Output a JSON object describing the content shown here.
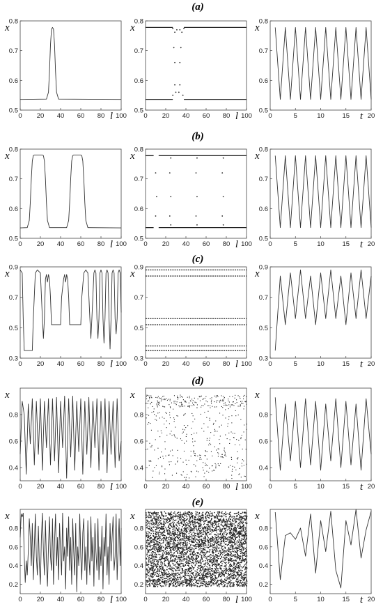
{
  "figure": {
    "row_labels": [
      "(a)",
      "(b)",
      "(c)",
      "(d)",
      "(e)"
    ]
  },
  "chart_data": [
    {
      "type": "line",
      "row": "(a)",
      "col": "profile",
      "xlabel": "l",
      "ylabel": "x",
      "xlim": [
        0,
        100
      ],
      "ylim": [
        0.5,
        0.8
      ],
      "xticks": [
        "0",
        "20",
        "40",
        "60",
        "80",
        "100"
      ],
      "yticks": [
        "0.5",
        "0.6",
        "0.7",
        "0.8"
      ],
      "x": [
        0,
        26,
        28,
        29,
        30,
        31,
        32,
        33,
        34,
        35,
        36,
        38,
        100
      ],
      "y": [
        0.536,
        0.537,
        0.56,
        0.63,
        0.72,
        0.772,
        0.778,
        0.772,
        0.72,
        0.63,
        0.56,
        0.537,
        0.536
      ]
    },
    {
      "type": "scatter",
      "row": "(a)",
      "col": "spatiotemporal",
      "xlabel": "l",
      "ylabel": "x",
      "xlim": [
        0,
        100
      ],
      "ylim": [
        0.5,
        0.8
      ],
      "xticks": [
        "0",
        "20",
        "40",
        "60",
        "80",
        "100"
      ],
      "yticks": [
        "0.5",
        "0.6",
        "0.7",
        "0.8"
      ],
      "bands": [
        {
          "y": 0.778,
          "x0": 0,
          "x1": 100,
          "gap": [
            27,
            38
          ]
        },
        {
          "y": 0.536,
          "x0": 0,
          "x1": 100,
          "gap": [
            27,
            38
          ]
        }
      ],
      "points": [
        [
          27,
          0.775
        ],
        [
          29,
          0.762
        ],
        [
          31,
          0.77
        ],
        [
          34,
          0.77
        ],
        [
          36,
          0.762
        ],
        [
          38,
          0.775
        ],
        [
          28,
          0.71
        ],
        [
          35,
          0.71
        ],
        [
          29,
          0.66
        ],
        [
          34,
          0.66
        ],
        [
          29,
          0.585
        ],
        [
          34,
          0.585
        ],
        [
          27,
          0.55
        ],
        [
          30,
          0.56
        ],
        [
          33,
          0.56
        ],
        [
          37,
          0.55
        ]
      ]
    },
    {
      "type": "line",
      "row": "(a)",
      "col": "time",
      "xlabel": "t",
      "ylabel": "x",
      "xlim": [
        0,
        20
      ],
      "ylim": [
        0.5,
        0.8
      ],
      "xticks": [
        "0",
        "5",
        "10",
        "15",
        "20"
      ],
      "yticks": [
        "0.5",
        "0.6",
        "0.7",
        "0.8"
      ],
      "x": [
        1,
        2,
        3,
        4,
        5,
        6,
        7,
        8,
        9,
        10,
        11,
        12,
        13,
        14,
        15,
        16,
        17,
        18,
        19,
        20
      ],
      "y": [
        0.778,
        0.536,
        0.778,
        0.536,
        0.778,
        0.536,
        0.778,
        0.536,
        0.778,
        0.536,
        0.778,
        0.536,
        0.778,
        0.536,
        0.778,
        0.536,
        0.778,
        0.536,
        0.778,
        0.536
      ]
    },
    {
      "type": "line",
      "row": "(b)",
      "col": "profile",
      "xlabel": "l",
      "ylabel": "x",
      "xlim": [
        0,
        100
      ],
      "ylim": [
        0.5,
        0.8
      ],
      "xticks": [
        "0",
        "20",
        "40",
        "60",
        "80",
        "100"
      ],
      "yticks": [
        "0.5",
        "0.6",
        "0.7",
        "0.8"
      ],
      "x": [
        0,
        7,
        9,
        10,
        11,
        12,
        13,
        14,
        22,
        23,
        24,
        25,
        26,
        27,
        29,
        46,
        48,
        49,
        50,
        51,
        52,
        53,
        60,
        61,
        62,
        63,
        64,
        65,
        67,
        100
      ],
      "y": [
        0.535,
        0.536,
        0.56,
        0.62,
        0.7,
        0.76,
        0.778,
        0.78,
        0.78,
        0.778,
        0.76,
        0.7,
        0.62,
        0.56,
        0.536,
        0.536,
        0.56,
        0.62,
        0.7,
        0.76,
        0.778,
        0.78,
        0.78,
        0.778,
        0.76,
        0.7,
        0.62,
        0.56,
        0.536,
        0.535
      ]
    },
    {
      "type": "scatter",
      "row": "(b)",
      "col": "spatiotemporal",
      "xlabel": "l",
      "ylabel": "x",
      "xlim": [
        0,
        100
      ],
      "ylim": [
        0.5,
        0.8
      ],
      "xticks": [
        "0",
        "20",
        "40",
        "60",
        "80",
        "100"
      ],
      "yticks": [
        "0.5",
        "0.6",
        "0.7",
        "0.8"
      ],
      "bands": [
        {
          "y": 0.778,
          "x0": 0,
          "x1": 100,
          "gap": [
            8,
            13
          ]
        },
        {
          "y": 0.536,
          "x0": 0,
          "x1": 100,
          "gap": [
            8,
            13
          ]
        }
      ],
      "points": [
        [
          10,
          0.72
        ],
        [
          24,
          0.72
        ],
        [
          50,
          0.72
        ],
        [
          76,
          0.72
        ],
        [
          11,
          0.64
        ],
        [
          25,
          0.64
        ],
        [
          51,
          0.64
        ],
        [
          77,
          0.64
        ],
        [
          10,
          0.575
        ],
        [
          24,
          0.575
        ],
        [
          50,
          0.575
        ],
        [
          76,
          0.575
        ],
        [
          25,
          0.77
        ],
        [
          51,
          0.77
        ],
        [
          77,
          0.77
        ],
        [
          25,
          0.545
        ],
        [
          51,
          0.545
        ],
        [
          77,
          0.545
        ]
      ]
    },
    {
      "type": "line",
      "row": "(b)",
      "col": "time",
      "xlabel": "t",
      "ylabel": "x",
      "xlim": [
        0,
        20
      ],
      "ylim": [
        0.5,
        0.8
      ],
      "xticks": [
        "0",
        "5",
        "10",
        "15",
        "20"
      ],
      "yticks": [
        "0.5",
        "0.6",
        "0.7",
        "0.8"
      ],
      "x": [
        1,
        2,
        3,
        4,
        5,
        6,
        7,
        8,
        9,
        10,
        11,
        12,
        13,
        14,
        15,
        16,
        17,
        18,
        19,
        20
      ],
      "y": [
        0.778,
        0.536,
        0.778,
        0.536,
        0.778,
        0.536,
        0.778,
        0.536,
        0.778,
        0.536,
        0.778,
        0.536,
        0.778,
        0.536,
        0.778,
        0.536,
        0.778,
        0.536,
        0.778,
        0.536
      ]
    },
    {
      "type": "line",
      "row": "(c)",
      "col": "profile",
      "xlabel": "l",
      "ylabel": "x",
      "xlim": [
        0,
        100
      ],
      "ylim": [
        0.3,
        0.9
      ],
      "xticks": [
        "0",
        "20",
        "40",
        "60",
        "80",
        "100"
      ],
      "yticks": [
        "0.3",
        "0.5",
        "0.7",
        "0.9"
      ],
      "x": [
        0,
        2,
        3,
        4,
        12,
        13,
        15,
        17,
        20,
        22,
        23,
        24,
        25,
        26,
        27,
        28,
        29,
        30,
        31,
        33,
        37,
        38,
        40,
        41,
        43,
        44,
        45,
        46,
        47,
        48,
        49,
        50,
        51,
        52,
        53,
        55,
        56,
        60,
        61,
        63,
        65,
        67,
        69,
        70,
        71,
        73,
        74,
        75,
        76,
        77,
        78,
        79,
        80,
        81,
        82,
        83,
        84,
        85,
        86,
        87,
        88,
        89,
        90,
        91,
        92,
        93,
        94,
        95,
        96,
        97,
        98,
        99,
        100
      ],
      "y": [
        0.88,
        0.86,
        0.56,
        0.35,
        0.35,
        0.56,
        0.86,
        0.88,
        0.86,
        0.56,
        0.43,
        0.56,
        0.82,
        0.85,
        0.8,
        0.85,
        0.82,
        0.7,
        0.52,
        0.52,
        0.52,
        0.52,
        0.52,
        0.7,
        0.82,
        0.85,
        0.8,
        0.85,
        0.82,
        0.7,
        0.52,
        0.52,
        0.52,
        0.52,
        0.52,
        0.52,
        0.52,
        0.52,
        0.7,
        0.86,
        0.88,
        0.86,
        0.56,
        0.43,
        0.56,
        0.86,
        0.88,
        0.86,
        0.56,
        0.43,
        0.56,
        0.86,
        0.88,
        0.86,
        0.56,
        0.4,
        0.56,
        0.86,
        0.88,
        0.86,
        0.56,
        0.36,
        0.56,
        0.86,
        0.88,
        0.86,
        0.56,
        0.46,
        0.56,
        0.86,
        0.88,
        0.86,
        0.6
      ]
    },
    {
      "type": "scatter",
      "row": "(c)",
      "col": "spatiotemporal",
      "xlabel": "l",
      "ylabel": "x",
      "xlim": [
        0,
        100
      ],
      "ylim": [
        0.3,
        0.9
      ],
      "xticks": [
        "0",
        "20",
        "40",
        "60",
        "80",
        "100"
      ],
      "yticks": [
        "0.3",
        "0.5",
        "0.7",
        "0.9"
      ],
      "bands": [
        {
          "y": 0.88,
          "x0": 0,
          "x1": 100,
          "gap": []
        },
        {
          "y": 0.84,
          "x0": 0,
          "x1": 100,
          "gap": []
        },
        {
          "y": 0.56,
          "x0": 0,
          "x1": 100,
          "gap": []
        },
        {
          "y": 0.52,
          "x0": 0,
          "x1": 100,
          "gap": []
        },
        {
          "y": 0.38,
          "x0": 0,
          "x1": 100,
          "gap": []
        },
        {
          "y": 0.35,
          "x0": 0,
          "x1": 100,
          "gap": []
        }
      ],
      "points": []
    },
    {
      "type": "line",
      "row": "(c)",
      "col": "time",
      "xlabel": "t",
      "ylabel": "x",
      "xlim": [
        0,
        20
      ],
      "ylim": [
        0.3,
        0.9
      ],
      "xticks": [
        "0",
        "5",
        "10",
        "15",
        "20"
      ],
      "yticks": [
        "0.3",
        "0.5",
        "0.7",
        "0.9"
      ],
      "x": [
        1,
        2,
        3,
        4,
        5,
        6,
        7,
        8,
        9,
        10,
        11,
        12,
        13,
        14,
        15,
        16,
        17,
        18,
        19,
        20
      ],
      "y": [
        0.35,
        0.84,
        0.52,
        0.86,
        0.56,
        0.88,
        0.56,
        0.84,
        0.52,
        0.86,
        0.56,
        0.88,
        0.56,
        0.84,
        0.52,
        0.86,
        0.56,
        0.88,
        0.56,
        0.84
      ]
    },
    {
      "type": "line",
      "row": "(d)",
      "col": "profile",
      "xlabel": "l",
      "ylabel": "x",
      "xlim": [
        0,
        100
      ],
      "ylim": [
        0.3,
        1.0
      ],
      "xticks": [
        "0",
        "20",
        "40",
        "60",
        "80",
        "100"
      ],
      "yticks": [
        "0.4",
        "0.6",
        "0.8"
      ],
      "x": [
        0,
        2,
        4,
        6,
        8,
        10,
        12,
        14,
        16,
        18,
        20,
        22,
        24,
        26,
        28,
        30,
        32,
        34,
        36,
        38,
        40,
        42,
        44,
        46,
        48,
        50,
        52,
        54,
        56,
        58,
        60,
        62,
        64,
        66,
        68,
        70,
        72,
        74,
        76,
        78,
        80,
        82,
        84,
        86,
        88,
        90,
        92,
        94,
        96,
        98,
        100
      ],
      "y": [
        0.5,
        0.9,
        0.8,
        0.35,
        0.88,
        0.58,
        0.92,
        0.42,
        0.9,
        0.5,
        0.92,
        0.38,
        0.9,
        0.55,
        0.92,
        0.42,
        0.92,
        0.45,
        0.93,
        0.36,
        0.9,
        0.55,
        0.94,
        0.32,
        0.92,
        0.48,
        0.94,
        0.38,
        0.9,
        0.52,
        0.92,
        0.35,
        0.9,
        0.5,
        0.93,
        0.4,
        0.9,
        0.55,
        0.92,
        0.38,
        0.9,
        0.5,
        0.92,
        0.36,
        0.9,
        0.5,
        0.9,
        0.4,
        0.92,
        0.45,
        0.6
      ]
    },
    {
      "type": "scatter",
      "row": "(d)",
      "col": "spatiotemporal",
      "xlabel": "l",
      "ylabel": "x",
      "xlim": [
        0,
        100
      ],
      "ylim": [
        0.3,
        1.0
      ],
      "xticks": [
        "0",
        "20",
        "40",
        "60",
        "80",
        "100"
      ],
      "yticks": [
        "0.4",
        "0.6",
        "0.8"
      ],
      "bands": [],
      "points": [],
      "noise_density": 520,
      "noise_seed": 7
    },
    {
      "type": "line",
      "row": "(d)",
      "col": "time",
      "xlabel": "t",
      "ylabel": "x",
      "xlim": [
        0,
        20
      ],
      "ylim": [
        0.3,
        1.0
      ],
      "xticks": [
        "0",
        "5",
        "10",
        "15",
        "20"
      ],
      "yticks": [
        "0.4",
        "0.6",
        "0.8"
      ],
      "x": [
        1,
        2,
        3,
        4,
        5,
        6,
        7,
        8,
        9,
        10,
        11,
        12,
        13,
        14,
        15,
        16,
        17,
        18,
        19,
        20
      ],
      "y": [
        0.93,
        0.38,
        0.88,
        0.45,
        0.9,
        0.4,
        0.92,
        0.42,
        0.9,
        0.38,
        0.88,
        0.45,
        0.92,
        0.4,
        0.9,
        0.42,
        0.88,
        0.38,
        0.92,
        0.5
      ]
    },
    {
      "type": "line",
      "row": "(e)",
      "col": "profile",
      "xlabel": "l",
      "ylabel": "x",
      "xlim": [
        0,
        100
      ],
      "ylim": [
        0.1,
        1.0
      ],
      "xticks": [
        "0",
        "20",
        "40",
        "60",
        "80",
        "100"
      ],
      "yticks": [
        "0.2",
        "0.4",
        "0.6",
        "0.8"
      ],
      "x": [
        0,
        1,
        2,
        3,
        4,
        5,
        6,
        7,
        8,
        9,
        10,
        11,
        12,
        13,
        14,
        15,
        16,
        17,
        18,
        19,
        20,
        21,
        22,
        23,
        24,
        25,
        26,
        27,
        28,
        29,
        30,
        31,
        32,
        33,
        34,
        35,
        36,
        37,
        38,
        39,
        40,
        41,
        42,
        43,
        44,
        45,
        46,
        47,
        48,
        49,
        50,
        51,
        52,
        53,
        54,
        55,
        56,
        57,
        58,
        59,
        60,
        61,
        62,
        63,
        64,
        65,
        66,
        67,
        68,
        69,
        70,
        71,
        72,
        73,
        74,
        75,
        76,
        77,
        78,
        79,
        80,
        81,
        82,
        83,
        84,
        85,
        86,
        87,
        88,
        89,
        90,
        91,
        92,
        93,
        94,
        95,
        96,
        97,
        98,
        99,
        100
      ],
      "y": [
        0.7,
        0.95,
        0.92,
        0.96,
        0.5,
        0.22,
        0.45,
        0.3,
        0.55,
        0.9,
        0.7,
        0.4,
        0.85,
        0.25,
        0.6,
        0.95,
        0.5,
        0.3,
        0.82,
        0.4,
        0.2,
        0.7,
        0.96,
        0.55,
        0.3,
        0.88,
        0.45,
        0.18,
        0.6,
        0.92,
        0.5,
        0.35,
        0.9,
        0.2,
        0.65,
        0.95,
        0.4,
        0.7,
        0.25,
        0.85,
        0.55,
        0.3,
        0.96,
        0.45,
        0.6,
        0.15,
        0.8,
        0.5,
        0.92,
        0.35,
        0.7,
        0.2,
        0.9,
        0.55,
        0.3,
        0.85,
        0.12,
        0.6,
        0.4,
        0.95,
        0.5,
        0.25,
        0.75,
        0.9,
        0.35,
        0.6,
        0.2,
        0.88,
        0.5,
        0.3,
        0.92,
        0.45,
        0.7,
        0.18,
        0.85,
        0.55,
        0.35,
        0.9,
        0.25,
        0.6,
        0.4,
        0.82,
        0.15,
        0.7,
        0.5,
        0.95,
        0.3,
        0.6,
        0.2,
        0.85,
        0.45,
        0.7,
        0.92,
        0.35,
        0.5,
        0.95,
        0.25,
        0.6,
        0.9,
        0.4,
        0.8
      ]
    },
    {
      "type": "scatter",
      "row": "(e)",
      "col": "spatiotemporal",
      "xlabel": "l",
      "ylabel": "x",
      "xlim": [
        0,
        100
      ],
      "ylim": [
        0.1,
        1.0
      ],
      "xticks": [
        "0",
        "20",
        "40",
        "60",
        "80",
        "100"
      ],
      "yticks": [
        "0.2",
        "0.4",
        "0.6",
        "0.8"
      ],
      "bands": [],
      "points": [],
      "noise_density": 4200,
      "noise_seed": 13
    },
    {
      "type": "line",
      "row": "(e)",
      "col": "time",
      "xlabel": "t",
      "ylabel": "x",
      "xlim": [
        0,
        20
      ],
      "ylim": [
        0.1,
        1.0
      ],
      "xticks": [
        "0",
        "5",
        "10",
        "15",
        "20"
      ],
      "yticks": [
        "0.2",
        "0.4",
        "0.6",
        "0.8"
      ],
      "x": [
        1,
        2,
        3,
        4,
        5,
        6,
        7,
        8,
        9,
        10,
        11,
        12,
        13,
        14,
        15,
        16,
        17,
        18,
        19,
        20
      ],
      "y": [
        0.97,
        0.25,
        0.72,
        0.75,
        0.68,
        0.8,
        0.5,
        0.95,
        0.32,
        0.88,
        0.55,
        0.98,
        0.35,
        0.16,
        0.88,
        0.62,
        1.0,
        0.48,
        0.78,
        0.98
      ]
    }
  ]
}
